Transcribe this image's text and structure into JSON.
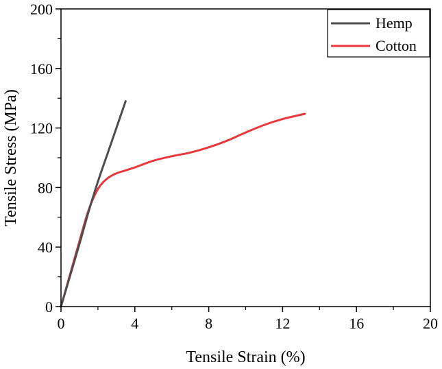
{
  "colors": {
    "hemp": "#4d4d4d",
    "cotton": "#e8383d",
    "axis": "#000000"
  },
  "chart_data": {
    "type": "line",
    "title": "",
    "xlabel": "Tensile Strain (%)",
    "ylabel": "Tensile Stress (MPa)",
    "xlim": [
      0,
      20
    ],
    "ylim": [
      0,
      200
    ],
    "xticks": [
      0,
      4,
      8,
      12,
      16,
      20
    ],
    "yticks": [
      0,
      40,
      80,
      120,
      160,
      200
    ],
    "grid": false,
    "legend_position": "top-right",
    "series": [
      {
        "name": "Hemp",
        "color": "#4d4d4d",
        "x": [
          0,
          0.5,
          1.0,
          1.5,
          2.0,
          2.5,
          3.0,
          3.5
        ],
        "y": [
          0,
          21,
          42,
          64,
          84,
          102,
          120,
          138
        ]
      },
      {
        "name": "Cotton",
        "color": "#e8383d",
        "x": [
          0,
          0.5,
          1.0,
          1.5,
          2.0,
          2.5,
          3.0,
          3.5,
          4.0,
          5.0,
          6.0,
          7.0,
          8.0,
          9.0,
          10.0,
          11.0,
          12.0,
          13.2
        ],
        "y": [
          0,
          22,
          44,
          65,
          79,
          86,
          89.5,
          91.5,
          93.5,
          98,
          101,
          103.5,
          107,
          111.5,
          117,
          122,
          126,
          129.5
        ]
      }
    ]
  }
}
